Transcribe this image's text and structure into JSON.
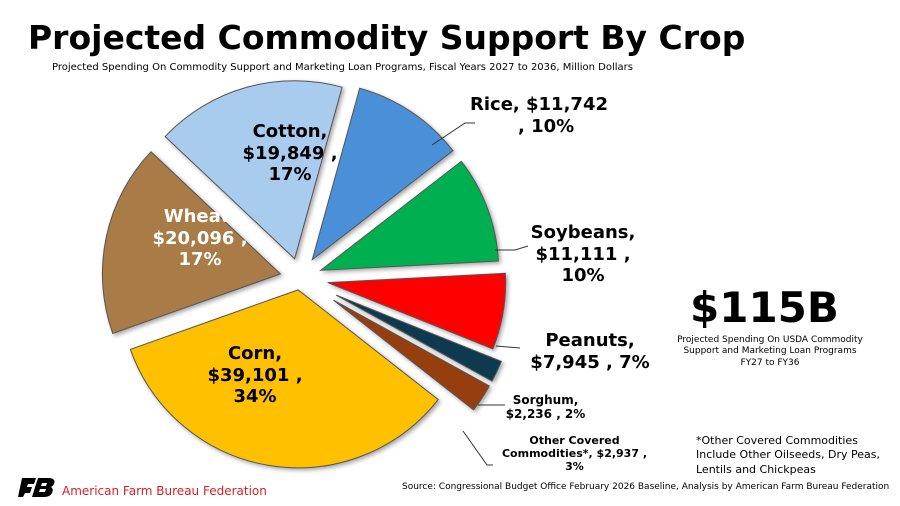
{
  "title": "Projected Commodity Support By Crop",
  "subtitle": "Projected Spending On Commodity Support and Marketing Loan Programs, Fiscal Years 2027 to 2036, Million Dollars",
  "chart_data": {
    "type": "pie",
    "unit": "Million Dollars",
    "slices": [
      {
        "name": "Rice",
        "value": 11742,
        "percent": 10,
        "color": "#4a90d9",
        "label": "Rice,  $11,742 , 10%"
      },
      {
        "name": "Soybeans",
        "value": 11111,
        "percent": 10,
        "color": "#00b050",
        "label": "Soybeans, $11,111 , 10%"
      },
      {
        "name": "Peanuts",
        "value": 7945,
        "percent": 7,
        "color": "#ff0000",
        "label": "Peanuts, $7,945 , 7%"
      },
      {
        "name": "Sorghum",
        "value": 2236,
        "percent": 2,
        "color": "#0d3a4f",
        "label": "Sorghum, $2,236 , 2%"
      },
      {
        "name": "Other Covered Commodities*",
        "value": 2937,
        "percent": 3,
        "color": "#973e0f",
        "label": "Other Covered Commodities*,  $2,937 , 3%"
      },
      {
        "name": "Corn",
        "value": 39101,
        "percent": 34,
        "color": "#ffc000",
        "label": "Corn, $39,101 , 34%"
      },
      {
        "name": "Wheat",
        "value": 20096,
        "percent": 17,
        "color": "#a87b47",
        "label": "Wheat, $20,096 , 17%"
      },
      {
        "name": "Cotton",
        "value": 19849,
        "percent": 17,
        "color": "#a9cbee",
        "label": "Cotton, $19,849 , 17%"
      }
    ]
  },
  "labels": {
    "rice": [
      "Rice,  $11,742",
      ", 10%"
    ],
    "soybeans": [
      "Soybeans,",
      "$11,111 ,",
      "10%"
    ],
    "peanuts": [
      "Peanuts,",
      "$7,945 , 7%"
    ],
    "sorghum": [
      "Sorghum,",
      "$2,236 , 2%"
    ],
    "other": [
      "Other Covered",
      "Commodities*,  $2,937 ,",
      "3%"
    ],
    "corn": [
      "Corn,",
      "$39,101 ,",
      "34%"
    ],
    "wheat": [
      "Wheat,",
      "$20,096 ,",
      "17%"
    ],
    "cotton": [
      "Cotton,",
      "$19,849 ,",
      "17%"
    ]
  },
  "total": {
    "value": "$115B",
    "caption": [
      "Projected Spending On USDA Commodity",
      "Support and Marketing Loan Programs",
      "FY27 to FY36"
    ]
  },
  "note": [
    "*Other Covered Commodities",
    "Include Other Oilseeds, Dry Peas,",
    "Lentils and Chickpeas"
  ],
  "source": "Source: Congressional Budget Office February 2026 Baseline, Analysis by American Farm Bureau Federation",
  "org": "American Farm Bureau Federation",
  "logo_text": "FB"
}
